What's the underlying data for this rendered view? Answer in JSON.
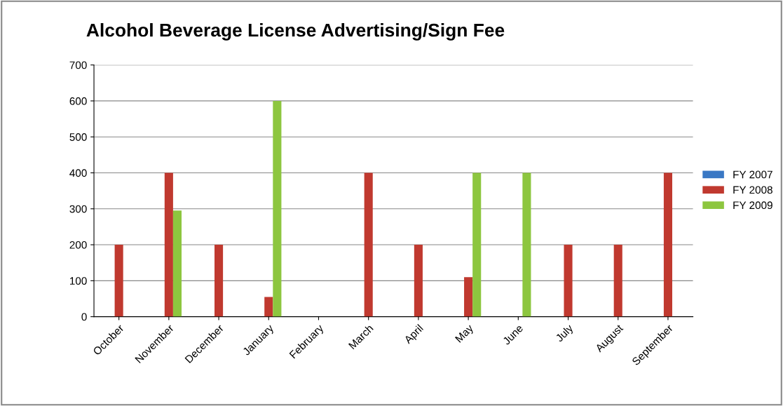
{
  "chart_data": {
    "type": "bar",
    "title": "Alcohol Beverage License Advertising/Sign Fee",
    "categories": [
      "October",
      "November",
      "December",
      "January",
      "February",
      "March",
      "April",
      "May",
      "June",
      "July",
      "August",
      "September"
    ],
    "series": [
      {
        "name": "FY 2007",
        "color": "#3a78c4",
        "values": [
          0,
          0,
          0,
          0,
          0,
          0,
          0,
          0,
          0,
          0,
          0,
          0
        ]
      },
      {
        "name": "FY 2008",
        "color": "#c0392f",
        "values": [
          200,
          400,
          200,
          55,
          0,
          400,
          200,
          110,
          0,
          200,
          200,
          400
        ]
      },
      {
        "name": "FY 2009",
        "color": "#8dc63f",
        "values": [
          0,
          295,
          0,
          600,
          0,
          0,
          0,
          400,
          400,
          0,
          0,
          0
        ]
      }
    ],
    "ylim": [
      0,
      700
    ],
    "yticks": [
      0,
      100,
      200,
      300,
      400,
      500,
      600,
      700
    ],
    "grid": "y",
    "legend": "right"
  }
}
